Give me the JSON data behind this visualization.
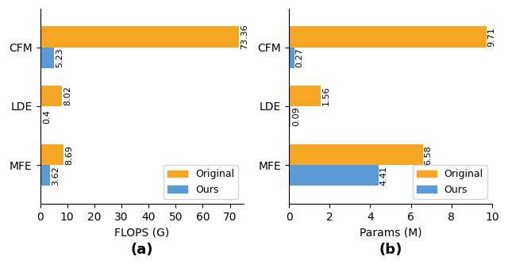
{
  "plot_a": {
    "categories": [
      "MFE",
      "LDE",
      "CFM"
    ],
    "original": [
      8.69,
      8.02,
      73.36
    ],
    "ours": [
      3.62,
      0.4,
      5.23
    ],
    "xlabel": "FLOPS (G)",
    "label": "(a)",
    "xlim": [
      0,
      75
    ],
    "xticks": [
      0,
      10,
      20,
      30,
      40,
      50,
      60,
      70
    ]
  },
  "plot_b": {
    "categories": [
      "MFE",
      "LDE",
      "CFM"
    ],
    "original": [
      6.58,
      1.56,
      9.71
    ],
    "ours": [
      4.41,
      0.09,
      0.27
    ],
    "xlabel": "Params (M)",
    "label": "(b)",
    "xlim": [
      0,
      10
    ],
    "xticks": [
      0,
      2,
      4,
      6,
      8,
      10
    ]
  },
  "color_original": "#F5A623",
  "color_ours": "#5B9BD5",
  "bar_height": 0.35,
  "figsize": [
    6.4,
    3.38
  ],
  "dpi": 100
}
